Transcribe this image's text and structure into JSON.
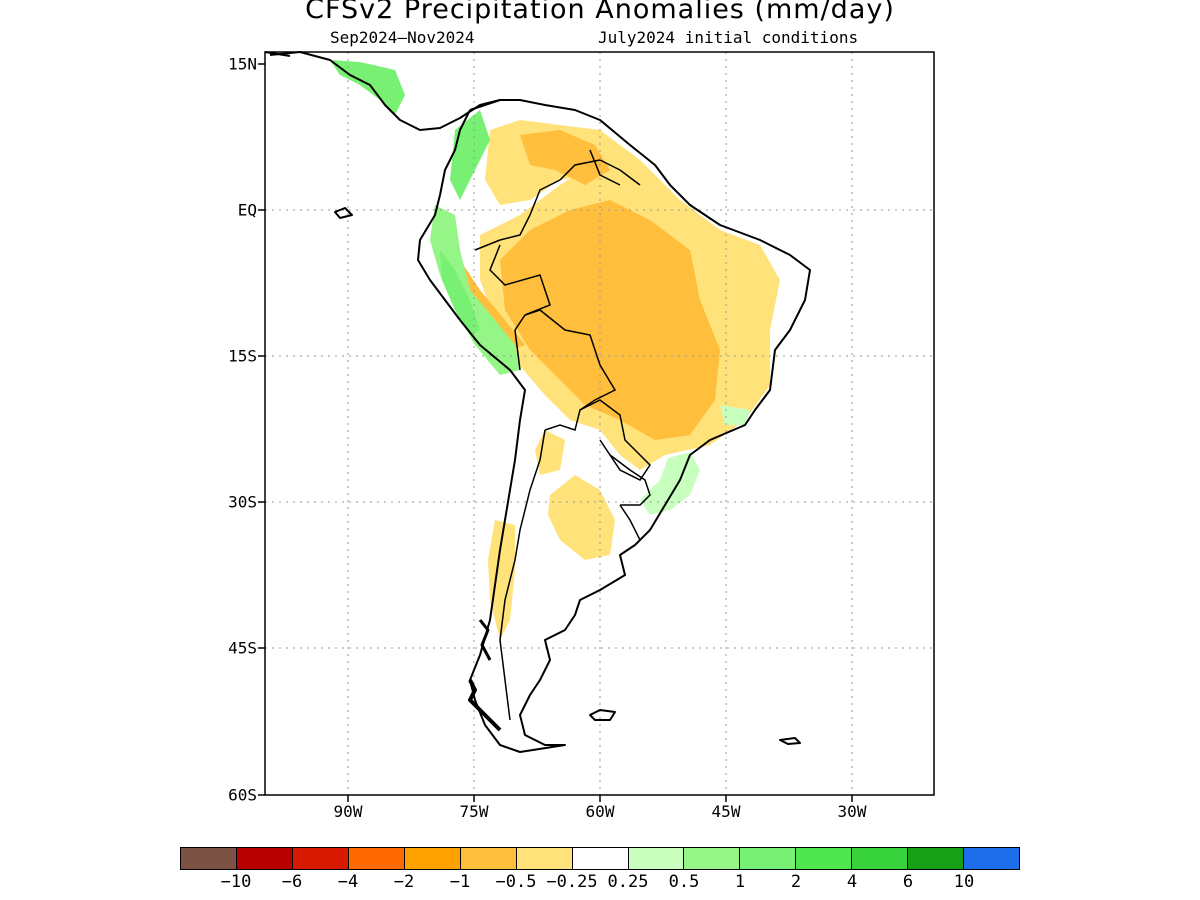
{
  "title": "CFSv2 Precipitation Anomalies (mm/day)",
  "subtitle_left": "Sep2024–Nov2024",
  "subtitle_right": "July2024 initial conditions",
  "lat_labels": [
    "15N",
    "EQ",
    "15S",
    "30S",
    "45S",
    "60S"
  ],
  "lon_labels": [
    "90W",
    "75W",
    "60W",
    "45W",
    "30W"
  ],
  "legend": {
    "labels": [
      "−10",
      "−6",
      "−4",
      "−2",
      "−1",
      "−0.5",
      "−0.25",
      "0.25",
      "0.5",
      "1",
      "2",
      "4",
      "6",
      "10"
    ],
    "colors": [
      "#7b5244",
      "#b80000",
      "#d81a00",
      "#ff6a00",
      "#ffa200",
      "#ffbe3c",
      "#ffe27a",
      "#ffffff",
      "#c8ffbe",
      "#96f587",
      "#78f073",
      "#50e650",
      "#37d23c",
      "#15a015",
      "#1e6eeb"
    ]
  }
}
